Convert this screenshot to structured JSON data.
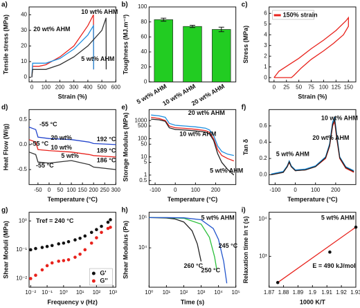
{
  "chart_data": [
    {
      "type": "line",
      "panel": "a)",
      "xlabel": "Strain (%)",
      "ylabel": "Tensile stress (MPa)",
      "xlim": [
        -20,
        600
      ],
      "xticks": [
        0,
        100,
        200,
        300,
        400,
        500,
        600
      ],
      "ylim": [
        -3,
        45
      ],
      "yticks": [
        0,
        10,
        20,
        30,
        40
      ],
      "legend": "direct",
      "series": [
        {
          "name": "10 wt% AHM",
          "color": "#e8221c",
          "x": [
            0,
            5,
            50,
            100,
            200,
            300,
            400,
            440,
            441
          ],
          "values": [
            0,
            7,
            7,
            8,
            13,
            20,
            33,
            40,
            5
          ]
        },
        {
          "name": "20 wt% AHM",
          "color": "#1f8fe0",
          "x": [
            0,
            5,
            100,
            200,
            300,
            400,
            440,
            441
          ],
          "values": [
            0,
            9,
            9,
            12,
            18,
            27,
            33,
            5
          ]
        },
        {
          "name": "5 wt% AHM",
          "color": "#333333",
          "x": [
            0,
            5,
            100,
            200,
            300,
            400,
            500,
            530,
            531
          ],
          "values": [
            0,
            5,
            5,
            8,
            13,
            20,
            30,
            38,
            5
          ]
        }
      ]
    },
    {
      "type": "bar",
      "panel": "b)",
      "ylabel": "Toughness (MJ.m⁻³)",
      "categories": [
        "5 wt% AHM",
        "10 wt% AHM",
        "20 wt% AHM"
      ],
      "values": [
        83,
        74,
        70
      ],
      "errors": [
        2,
        1.5,
        3
      ],
      "color": "#22cc22",
      "ylim": [
        0,
        100
      ],
      "yticks": [
        0,
        20,
        40,
        60,
        80,
        100
      ]
    },
    {
      "type": "line",
      "panel": "c)",
      "xlabel": "Strain (%)",
      "ylabel": "Stress (MPa)",
      "xlim": [
        -10,
        165
      ],
      "xticks": [
        0,
        25,
        50,
        75,
        100,
        125,
        150
      ],
      "ylim": [
        -0.4,
        6.6
      ],
      "yticks": [
        0,
        1,
        2,
        3,
        4,
        5,
        6
      ],
      "legend": "upper left",
      "series": [
        {
          "name": "150% strain",
          "color": "#e8221c",
          "x": [
            0,
            10,
            30,
            50,
            75,
            100,
            125,
            145,
            150,
            150,
            140,
            120,
            100,
            75,
            55,
            40,
            35,
            0
          ],
          "values": [
            0,
            0.6,
            1.2,
            1.8,
            2.7,
            3.5,
            4.4,
            5.3,
            5.6,
            4.8,
            4.0,
            3.2,
            2.5,
            1.7,
            0.9,
            0.2,
            0,
            0
          ]
        }
      ]
    },
    {
      "type": "line",
      "panel": "d)",
      "xlabel": "Temperature (°C)",
      "ylabel": "Heat Flow (W/g)",
      "xlim": [
        -90,
        300
      ],
      "xticks": [
        -50,
        0,
        50,
        100,
        150,
        200,
        250,
        300
      ],
      "ylim": [
        -0.8,
        0.7
      ],
      "yticks": [
        {
          "value": -0.5,
          "label": "-0.5"
        },
        {
          "value": 0,
          "label": "0.0"
        },
        {
          "value": 0.5,
          "label": "0.5"
        }
      ],
      "legend": "direct",
      "annotations": [
        {
          "text": "-55 °C",
          "color": "#2244cc"
        },
        {
          "text": "-55 °C",
          "color": "#e8221c"
        },
        {
          "text": "-55 °C",
          "color": "#333333"
        },
        {
          "text": "192 °C",
          "color": "#2244cc"
        },
        {
          "text": "189 °C",
          "color": "#e8221c"
        },
        {
          "text": "186 °C",
          "color": "#333333"
        }
      ],
      "series": [
        {
          "name": "20 wt%",
          "color": "#2244cc",
          "x": [
            -90,
            -60,
            -50,
            0,
            100,
            180,
            200,
            300
          ],
          "values": [
            0.35,
            0.3,
            0.15,
            0.12,
            0.1,
            0.05,
            0.02,
            0
          ]
        },
        {
          "name": "10 wt%",
          "color": "#e8221c",
          "x": [
            -90,
            -60,
            -50,
            0,
            100,
            180,
            200,
            300
          ],
          "values": [
            0.1,
            0.05,
            -0.1,
            -0.12,
            -0.15,
            -0.2,
            -0.22,
            -0.25
          ]
        },
        {
          "name": "5 wt%",
          "color": "#333333",
          "x": [
            -90,
            -60,
            -50,
            0,
            100,
            180,
            200,
            300
          ],
          "values": [
            -0.15,
            -0.2,
            -0.35,
            -0.37,
            -0.32,
            -0.4,
            -0.45,
            -0.5
          ]
        }
      ]
    },
    {
      "type": "line",
      "panel": "e)",
      "xlabel": "Temperature (°C)",
      "ylabel": "Storage Modulus (MPa)",
      "ylog": true,
      "xlim": [
        -130,
        300
      ],
      "xticks": [
        -100,
        0,
        100,
        200
      ],
      "ylim": [
        0.3,
        4000
      ],
      "yticks": [
        0.5,
        1,
        5,
        10,
        50,
        100,
        500,
        1000
      ],
      "legend": "direct",
      "series": [
        {
          "name": "20 wt% AHM",
          "color": "#1f8fe0",
          "x": [
            -120,
            -80,
            -50,
            -30,
            0,
            50,
            100,
            150,
            170,
            190,
            210,
            230,
            260,
            290
          ],
          "values": [
            2000,
            1800,
            1500,
            700,
            550,
            500,
            450,
            380,
            300,
            150,
            40,
            20,
            14,
            12
          ]
        },
        {
          "name": "10 wt% AHM",
          "color": "#e8221c",
          "x": [
            -120,
            -80,
            -50,
            -30,
            0,
            50,
            100,
            150,
            170,
            190,
            210,
            230,
            260,
            290
          ],
          "values": [
            1500,
            1300,
            1000,
            500,
            400,
            370,
            330,
            280,
            220,
            100,
            25,
            12,
            8,
            6
          ]
        },
        {
          "name": "5 wt% AHM",
          "color": "#222222",
          "x": [
            -120,
            -80,
            -50,
            -30,
            0,
            50,
            100,
            150,
            170,
            190,
            210,
            230,
            260,
            290
          ],
          "values": [
            1200,
            1100,
            900,
            400,
            320,
            300,
            270,
            230,
            180,
            80,
            15,
            5,
            2,
            1
          ]
        }
      ]
    },
    {
      "type": "line",
      "panel": "f)",
      "xlabel": "Temperature (°C)",
      "ylabel": "Tan δ",
      "xlim": [
        -130,
        300
      ],
      "xticks": [
        -100,
        0,
        100,
        200
      ],
      "ylim": [
        -0.12,
        0.8
      ],
      "yticks": [
        {
          "value": 0,
          "label": "0.0"
        },
        0.2,
        0.4,
        0.6
      ],
      "legend": "direct",
      "series": [
        {
          "name": "10 wt% AHM",
          "color": "#e8221c",
          "x": [
            -120,
            -60,
            -40,
            -30,
            -20,
            0,
            50,
            100,
            150,
            170,
            185,
            195,
            205,
            220,
            250,
            290
          ],
          "values": [
            0,
            0.03,
            0.1,
            0.15,
            0.1,
            0.05,
            0.06,
            0.1,
            0.2,
            0.35,
            0.6,
            0.65,
            0.45,
            0.2,
            0.08,
            0.03
          ]
        },
        {
          "name": "20 wt% AHM",
          "color": "#1f8fe0",
          "x": [
            -120,
            -60,
            -40,
            -30,
            -20,
            0,
            50,
            100,
            150,
            170,
            185,
            195,
            205,
            220,
            250,
            290
          ],
          "values": [
            0.01,
            0.04,
            0.11,
            0.17,
            0.11,
            0.06,
            0.07,
            0.11,
            0.22,
            0.38,
            0.65,
            0.7,
            0.5,
            0.22,
            0.1,
            0.05
          ]
        },
        {
          "name": "5 wt% AHM",
          "color": "#222222",
          "x": [
            -120,
            -60,
            -40,
            -30,
            -20,
            0,
            50,
            100,
            150,
            170,
            185,
            195,
            205,
            220,
            250,
            290
          ],
          "values": [
            0,
            0.03,
            0.1,
            0.16,
            0.1,
            0.05,
            0.06,
            0.1,
            0.21,
            0.36,
            0.62,
            0.68,
            0.47,
            0.21,
            0.09,
            0.04
          ]
        }
      ]
    },
    {
      "type": "scatter",
      "panel": "g)",
      "xlabel": "Frequency ν (Hz)",
      "ylabel": "Shear Moduli (MPa)",
      "xlog": true,
      "ylog": true,
      "xlim": [
        0.008,
        1500
      ],
      "xticks": [
        {
          "value": 0.01,
          "label": "10⁻²"
        },
        {
          "value": 0.1,
          "label": "10⁻¹"
        },
        {
          "value": 1,
          "label": "10⁰"
        },
        {
          "value": 10,
          "label": "10¹"
        },
        {
          "value": 100,
          "label": "10²"
        },
        {
          "value": 1000,
          "label": "10³"
        }
      ],
      "ylim": [
        0.005,
        2
      ],
      "yticks": [
        {
          "value": 0.01,
          "label": "10⁻²"
        },
        {
          "value": 0.1,
          "label": "10⁻¹"
        },
        {
          "value": 1,
          "label": "10⁰"
        }
      ],
      "legend": "lower right",
      "annotations": [
        {
          "text": "Tref = 240 °C",
          "color": "#111111"
        }
      ],
      "series": [
        {
          "name": "G'",
          "color": "#111111",
          "x": [
            0.01,
            0.02,
            0.05,
            0.1,
            0.2,
            0.5,
            1,
            2,
            5,
            10,
            20,
            50,
            100,
            200,
            500,
            700
          ],
          "values": [
            0.1,
            0.11,
            0.12,
            0.13,
            0.14,
            0.16,
            0.17,
            0.19,
            0.22,
            0.25,
            0.3,
            0.4,
            0.5,
            0.65,
            0.9,
            1.1
          ]
        },
        {
          "name": "G''",
          "color": "#e8221c",
          "x": [
            0.01,
            0.02,
            0.05,
            0.1,
            0.2,
            0.5,
            1,
            2,
            5,
            10,
            20,
            50,
            100,
            200,
            500,
            700
          ],
          "values": [
            0.01,
            0.013,
            0.02,
            0.028,
            0.035,
            0.04,
            0.042,
            0.045,
            0.055,
            0.07,
            0.1,
            0.17,
            0.26,
            0.4,
            0.55,
            0.6
          ]
        }
      ]
    },
    {
      "type": "line",
      "panel": "h)",
      "xlabel": "Time (s)",
      "ylabel": "Shear Modulus (Pa)",
      "xlog": true,
      "ylog": true,
      "xlim": [
        1,
        100000
      ],
      "xticks": [
        {
          "value": 1,
          "label": "10⁰"
        },
        {
          "value": 10,
          "label": "10¹"
        },
        {
          "value": 100,
          "label": "10²"
        },
        {
          "value": 1000,
          "label": "10³"
        },
        {
          "value": 10000,
          "label": "10⁴"
        },
        {
          "value": 100000,
          "label": "10⁵"
        }
      ],
      "ylim": [
        500,
        150000
      ],
      "yticks": [
        {
          "value": 10000,
          "label": "10⁴"
        },
        {
          "value": 100000,
          "label": "10⁵"
        }
      ],
      "legend": "direct",
      "annotations": [
        {
          "text": "5 wt% AHM",
          "color": "#111111"
        }
      ],
      "series": [
        {
          "name": "260 °C",
          "color": "#222222",
          "x": [
            1,
            3,
            10,
            30,
            100,
            300,
            600,
            1000
          ],
          "values": [
            99700,
            99000,
            96700,
            90500,
            71700,
            36800,
            13500,
            3570
          ]
        },
        {
          "name": "250 °C",
          "color": "#2bbf3b",
          "x": [
            1,
            10,
            100,
            1000,
            3000,
            6000,
            8000
          ],
          "values": [
            100000,
            99500,
            95100,
            60700,
            22300,
            4980,
            1830
          ]
        },
        {
          "name": "245 °C",
          "color": "#2255cc",
          "x": [
            1,
            10,
            100,
            1000,
            5000,
            10000,
            20000,
            30000
          ],
          "values": [
            100000,
            99800,
            98400,
            84600,
            43500,
            18900,
            3570,
            674
          ]
        }
      ]
    },
    {
      "type": "scatter",
      "panel": "i)",
      "xlabel": "1000 K/T",
      "ylabel": "Relaxation time ln τ (s)",
      "ylog": true,
      "xlim": [
        1.87,
        1.93
      ],
      "xticks": [
        1.87,
        1.88,
        1.89,
        1.9,
        1.91,
        1.92,
        1.93
      ],
      "ylim": [
        150,
        15000
      ],
      "yticks": [
        {
          "value": 1000,
          "label": "10³"
        },
        {
          "value": 10000,
          "label": "10⁴"
        }
      ],
      "annotations": [
        {
          "text": "5 wt% AHM",
          "color": "#111111"
        },
        {
          "text": "E = 490 kJ/mol",
          "color": "#111111"
        }
      ],
      "series": [
        {
          "type": "line",
          "color": "#e8221c",
          "x": [
            1.876,
            1.93
          ],
          "values": [
            200,
            6000
          ]
        },
        {
          "color": "#111111",
          "x": [
            1.876,
            1.912,
            1.93
          ],
          "values": [
            200,
            1300,
            6000
          ]
        }
      ]
    }
  ]
}
